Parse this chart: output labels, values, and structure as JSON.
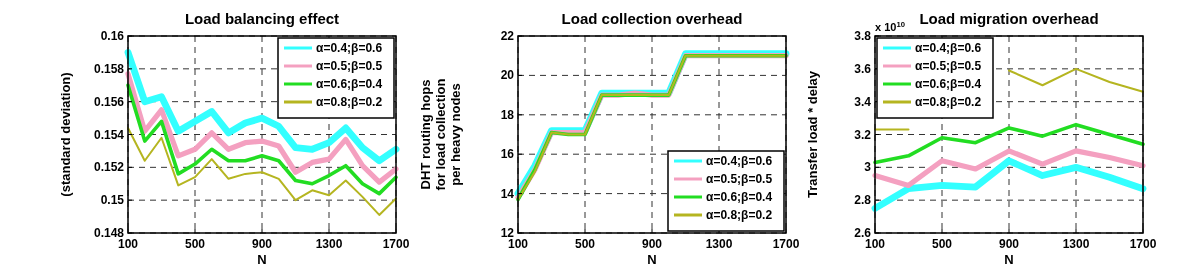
{
  "chart_data": [
    {
      "type": "line",
      "title": "Load balancing effect",
      "xlabel": "N",
      "ylabel": "(standard deviation)",
      "x": [
        100,
        200,
        300,
        400,
        500,
        600,
        700,
        800,
        900,
        1000,
        1100,
        1200,
        1300,
        1400,
        1500,
        1600,
        1700
      ],
      "xlim": [
        100,
        1700
      ],
      "xticks": [
        100,
        500,
        900,
        1300,
        1700
      ],
      "ylim": [
        0.148,
        0.16
      ],
      "yticks": [
        0.148,
        0.15,
        0.152,
        0.154,
        0.156,
        0.158,
        0.16
      ],
      "grid": true,
      "line_style": "solid",
      "legend": "top right",
      "series": [
        {
          "name": "α=0.4;β=0.6",
          "color": "#33ffff",
          "values": [
            0.159,
            0.156,
            0.1563,
            0.1542,
            0.1548,
            0.1554,
            0.1541,
            0.1547,
            0.155,
            0.1545,
            0.1532,
            0.1531,
            0.1535,
            0.1544,
            0.1532,
            0.1524,
            0.1531
          ]
        },
        {
          "name": "α=0.5;β=0.5",
          "color": "#f4a0c0",
          "values": [
            0.1577,
            0.1542,
            0.1555,
            0.1527,
            0.1531,
            0.1541,
            0.1531,
            0.1535,
            0.1536,
            0.1533,
            0.1517,
            0.1523,
            0.1525,
            0.1537,
            0.1521,
            0.1511,
            0.1519
          ]
        },
        {
          "name": "α=0.6;β=0.4",
          "color": "#22dd22",
          "values": [
            0.157,
            0.1536,
            0.1548,
            0.1516,
            0.1522,
            0.1531,
            0.1524,
            0.1524,
            0.1527,
            0.1524,
            0.1512,
            0.151,
            0.1515,
            0.1521,
            0.151,
            0.1504,
            0.1514
          ]
        },
        {
          "name": "α=0.8;β=0.2",
          "color": "#b5b520",
          "values": [
            0.1544,
            0.1524,
            0.1538,
            0.1509,
            0.1514,
            0.1525,
            0.1513,
            0.1516,
            0.1517,
            0.1513,
            0.15,
            0.1506,
            0.1503,
            0.1512,
            0.1502,
            0.1491,
            0.1501
          ]
        }
      ]
    },
    {
      "type": "line",
      "title": "Load collection overhead",
      "xlabel": "N",
      "ylabel": "DHT routing hops\nfor load collection\nper heavy nodes",
      "x": [
        100,
        200,
        300,
        400,
        500,
        600,
        700,
        800,
        900,
        1000,
        1100,
        1200,
        1300,
        1400,
        1500,
        1600,
        1700
      ],
      "xlim": [
        100,
        1700
      ],
      "xticks": [
        100,
        500,
        900,
        1300,
        1700
      ],
      "ylim": [
        12,
        22
      ],
      "yticks": [
        12,
        14,
        16,
        18,
        20,
        22
      ],
      "grid": true,
      "line_style": "solid",
      "legend": "bottom right",
      "series": [
        {
          "name": "α=0.4;β=0.6",
          "color": "#33ffff",
          "values": [
            14.0,
            15.4,
            17.2,
            17.2,
            17.2,
            19.1,
            19.1,
            19.1,
            19.1,
            19.1,
            21.1,
            21.1,
            21.1,
            21.1,
            21.1,
            21.1,
            21.1
          ]
        },
        {
          "name": "α=0.5;β=0.5",
          "color": "#f4a0c0",
          "values": [
            13.8,
            15.2,
            17.1,
            17.1,
            17.1,
            19.0,
            19.0,
            19.1,
            19.0,
            19.0,
            21.0,
            21.0,
            21.0,
            21.0,
            21.0,
            21.0,
            21.0
          ]
        },
        {
          "name": "α=0.6;β=0.4",
          "color": "#22dd22",
          "values": [
            13.7,
            15.2,
            17.1,
            17.0,
            17.0,
            19.0,
            19.0,
            19.0,
            19.0,
            19.0,
            21.0,
            21.0,
            21.0,
            21.0,
            21.0,
            21.0,
            21.0
          ]
        },
        {
          "name": "α=0.8;β=0.2",
          "color": "#b5b520",
          "values": [
            13.7,
            15.1,
            17.1,
            17.0,
            17.0,
            19.0,
            19.0,
            19.0,
            19.0,
            19.0,
            21.0,
            21.0,
            21.0,
            21.0,
            21.0,
            21.0,
            21.0
          ]
        }
      ]
    },
    {
      "type": "line",
      "title": "Load migration overhead",
      "xlabel": "N",
      "ylabel": "Transfer load * delay",
      "annotations": [
        "x 10$^{10}$"
      ],
      "x": [
        100,
        300,
        500,
        700,
        900,
        1100,
        1300,
        1500,
        1700
      ],
      "xlim": [
        100,
        1700
      ],
      "xticks": [
        100,
        500,
        900,
        1300,
        1700
      ],
      "ylim": [
        2.6,
        3.8
      ],
      "yticks": [
        2.6,
        2.8,
        3,
        3.2,
        3.4,
        3.6,
        3.8
      ],
      "grid": true,
      "line_style": "solid",
      "legend": "top left",
      "series": [
        {
          "name": "α=0.4;β=0.6",
          "color": "#33ffff",
          "values": [
            2.75,
            2.87,
            2.89,
            2.88,
            3.04,
            2.95,
            3.0,
            2.94,
            2.87
          ]
        },
        {
          "name": "α=0.5;β=0.5",
          "color": "#f4a0c0",
          "values": [
            2.95,
            2.89,
            3.04,
            2.99,
            3.1,
            3.02,
            3.1,
            3.06,
            3.01
          ]
        },
        {
          "name": "α=0.6;β=0.4",
          "color": "#22dd22",
          "values": [
            3.03,
            3.07,
            3.18,
            3.15,
            3.24,
            3.19,
            3.26,
            3.2,
            3.14
          ]
        },
        {
          "name": "α=0.8;β=0.2",
          "color": "#b5b520",
          "values": [
            3.23,
            3.23,
            null,
            null,
            3.59,
            3.5,
            3.6,
            3.52,
            3.46
          ]
        }
      ]
    }
  ]
}
